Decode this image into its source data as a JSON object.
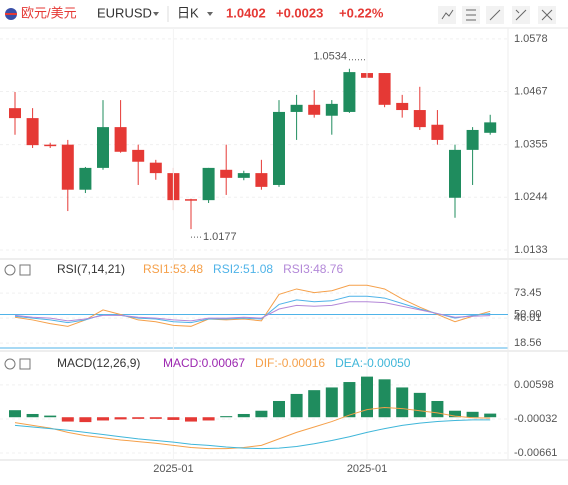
{
  "header": {
    "pair": "欧元/美元",
    "symbol": "EURUSD",
    "period": "日K",
    "price": "1.0402",
    "change": "+0.0023",
    "change_pct": "+0.22%"
  },
  "chart_data": [
    {
      "type": "candlestick",
      "categories": [
        null,
        null,
        null,
        null,
        null,
        null,
        null,
        null,
        null,
        "2025-01",
        null,
        null,
        null,
        null,
        null,
        null,
        null,
        null,
        null,
        null,
        "2025-01",
        null,
        null,
        null,
        null,
        null,
        null,
        null
      ],
      "open": [
        1.0432,
        1.0411,
        1.0355,
        1.0355,
        1.026,
        1.0306,
        1.0392,
        1.0344,
        1.0317,
        1.0295,
        1.024,
        1.0238,
        1.0302,
        1.0285,
        1.0295,
        1.027,
        1.0424,
        1.0439,
        1.0416,
        1.0424,
        1.0506,
        1.0506,
        1.0443,
        1.0428,
        1.0397,
        1.0243,
        1.0344,
        1.038
      ],
      "close": [
        1.0411,
        1.0354,
        1.0353,
        1.026,
        1.0306,
        1.0392,
        1.034,
        1.0319,
        1.0295,
        1.0238,
        1.0238,
        1.0306,
        1.0285,
        1.0295,
        1.0266,
        1.0424,
        1.0439,
        1.0418,
        1.0441,
        1.0508,
        1.0496,
        1.0439,
        1.0428,
        1.0392,
        1.0365,
        1.0344,
        1.0386,
        1.0402
      ],
      "high": [
        1.0466,
        1.0432,
        1.0359,
        1.0365,
        1.0308,
        1.0449,
        1.0449,
        1.0355,
        1.0323,
        1.0306,
        1.0241,
        1.0306,
        1.0355,
        1.03,
        1.0323,
        1.0449,
        1.046,
        1.047,
        1.0449,
        1.0515,
        1.0534,
        1.0506,
        1.046,
        1.0477,
        1.0428,
        1.0355,
        1.0392,
        1.0418
      ],
      "low": [
        1.0376,
        1.0348,
        1.0348,
        1.0215,
        1.0253,
        1.0302,
        1.0338,
        1.027,
        1.0281,
        1.0217,
        1.0177,
        1.0232,
        1.0249,
        1.028,
        1.026,
        1.0266,
        1.0365,
        1.0412,
        1.0376,
        1.0422,
        1.046,
        1.0434,
        1.0412,
        1.0386,
        1.0355,
        1.0201,
        1.027,
        1.0376
      ],
      "up_color": "#1f8c5e",
      "down_color": "#e53935",
      "ylim": [
        1.0116,
        1.0601
      ],
      "yticks": [
        1.0578,
        1.0467,
        1.0355,
        1.0244,
        1.0133
      ],
      "grid": true
    },
    {
      "type": "line",
      "title": "RSI(7,14,21)",
      "series": [
        {
          "name": "RSI1:53.48",
          "color": "#f5a04a",
          "values": [
            47,
            44,
            40,
            37,
            44,
            55,
            50,
            44,
            42,
            38,
            37,
            45,
            44,
            45,
            43,
            72,
            78,
            74,
            76,
            82,
            82,
            78,
            67,
            58,
            50,
            42,
            48,
            53.48
          ]
        },
        {
          "name": "RSI2:51.08",
          "color": "#4fb3e8",
          "values": [
            48,
            46,
            44,
            41,
            44,
            50,
            49,
            46,
            45,
            42,
            41,
            45,
            45,
            46,
            45,
            61,
            66,
            64,
            65,
            70,
            70,
            68,
            62,
            56,
            51,
            46,
            49,
            51.08
          ]
        },
        {
          "name": "RSI3:48.76",
          "color": "#b388d8",
          "values": [
            49,
            47,
            46,
            43,
            45,
            49,
            49,
            47,
            46,
            44,
            43,
            46,
            46,
            47,
            46,
            56,
            60,
            59,
            60,
            64,
            64,
            63,
            59,
            55,
            51,
            47,
            48,
            48.76
          ]
        }
      ],
      "ylim": [
        11,
        101
      ],
      "yticks": [
        73.45,
        {
          "value": 50,
          "label": "50.00"
        },
        46.01,
        18.56
      ],
      "grid": true
    },
    {
      "type": "bar",
      "title": "MACD(12,26,9)",
      "series": [
        {
          "name": "MACD:0.00067",
          "type": "bar",
          "up_color": "#1f8c5e",
          "down_color": "#e53935",
          "color": "#9c27b0",
          "values": [
            0.0013,
            0.0006,
            0.0003,
            -0.0008,
            -0.0009,
            -0.0006,
            -0.0004,
            -0.0003,
            -0.0003,
            -0.0005,
            -0.0008,
            -0.0006,
            0.0002,
            0.0006,
            0.0012,
            0.003,
            0.0043,
            0.005,
            0.0055,
            0.0065,
            0.0075,
            0.007,
            0.0055,
            0.0045,
            0.003,
            0.0012,
            0.001,
            0.00067
          ]
        },
        {
          "name": "DIF:-0.00016",
          "type": "line",
          "color": "#f5a04a",
          "values": [
            -0.001,
            -0.0015,
            -0.002,
            -0.0028,
            -0.0034,
            -0.0038,
            -0.0042,
            -0.0045,
            -0.0048,
            -0.0052,
            -0.0056,
            -0.0058,
            -0.0058,
            -0.0056,
            -0.0052,
            -0.004,
            -0.0028,
            -0.0018,
            -0.0008,
            0.0004,
            0.0014,
            0.0018,
            0.0016,
            0.0012,
            0.0008,
            0.0002,
            -0.0001,
            -0.00016
          ]
        },
        {
          "name": "DEA:-0.00050",
          "type": "line",
          "color": "#3fb6d9",
          "values": [
            -0.0015,
            -0.0018,
            -0.0021,
            -0.0024,
            -0.0028,
            -0.0032,
            -0.0036,
            -0.004,
            -0.0043,
            -0.0046,
            -0.005,
            -0.0052,
            -0.0055,
            -0.0057,
            -0.0058,
            -0.0057,
            -0.0054,
            -0.0049,
            -0.0043,
            -0.0036,
            -0.0028,
            -0.0021,
            -0.0015,
            -0.0011,
            -0.0008,
            -0.0006,
            -0.0005,
            -0.0005
          ]
        }
      ],
      "ylim": [
        -0.0079,
        0.0102
      ],
      "yticks": [
        0.00598,
        -0.00032,
        -0.00661
      ],
      "grid": true
    }
  ]
}
